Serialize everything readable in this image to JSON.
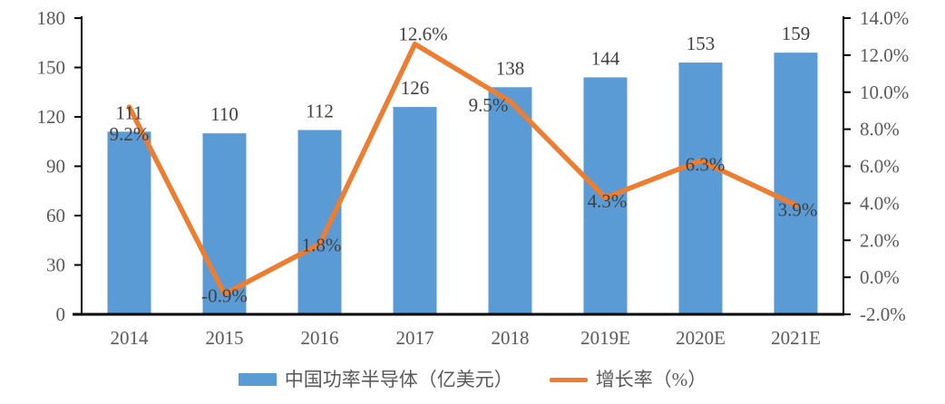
{
  "chart_data": {
    "type": "bar",
    "subtype": "bar-line-combo",
    "title": "",
    "categories": [
      "2014",
      "2015",
      "2016",
      "2017",
      "2018",
      "2019E",
      "2020E",
      "2021E"
    ],
    "series": [
      {
        "name": "中国功率半导体（亿美元）",
        "type": "bar",
        "axis": "left",
        "color": "#5B9BD5",
        "values": [
          111,
          110,
          112,
          126,
          138,
          144,
          153,
          159
        ],
        "labels": [
          "111",
          "110",
          "112",
          "126",
          "138",
          "144",
          "153",
          "159"
        ]
      },
      {
        "name": "增长率（%）",
        "type": "line",
        "axis": "right",
        "color": "#ED7D31",
        "values": [
          9.2,
          -0.9,
          1.8,
          12.6,
          9.5,
          4.3,
          6.3,
          3.9
        ],
        "labels": [
          "9.2%",
          "-0.9%",
          "1.8%",
          "12.6%",
          "9.5%",
          "4.3%",
          "6.3%",
          "3.9%"
        ]
      }
    ],
    "left_axis": {
      "min": 0,
      "max": 180,
      "step": 30,
      "tick_labels": [
        "0",
        "30",
        "60",
        "90",
        "120",
        "150",
        "180"
      ]
    },
    "right_axis": {
      "min": -2,
      "max": 14,
      "step": 2,
      "tick_labels": [
        "-2.0%",
        "0.0%",
        "2.0%",
        "4.0%",
        "6.0%",
        "8.0%",
        "10.0%",
        "12.0%",
        "14.0%"
      ]
    },
    "grid": false,
    "legend_position": "bottom",
    "colors": {
      "bar": "#5B9BD5",
      "line": "#ED7D31",
      "axis_line": "#000000",
      "axis_text": "#595959",
      "data_label_text": "#404040",
      "background": "#FFFFFF"
    }
  }
}
